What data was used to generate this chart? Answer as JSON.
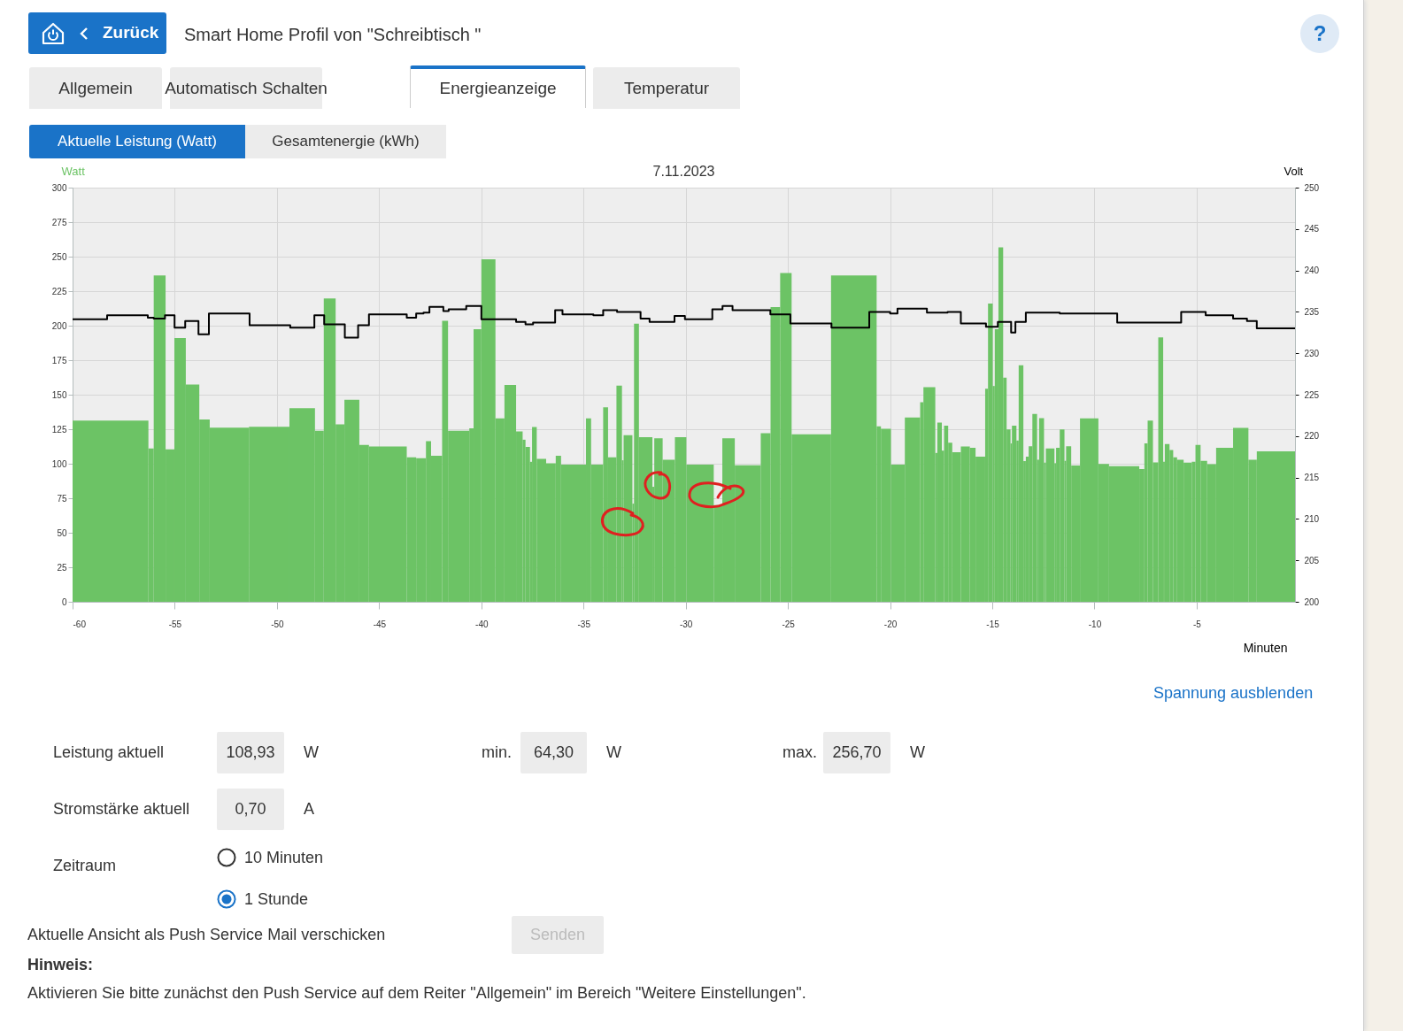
{
  "chart_data": {
    "type": "histogram",
    "title": "7.11.2023",
    "xlabel": "Minuten",
    "ylabel": "Watt",
    "y2label": "Volt",
    "xlim": [
      -60,
      -0.19
    ],
    "xticks": [
      -60,
      -55,
      -50,
      -45,
      -40,
      -35,
      -30,
      -25,
      -20,
      -15,
      -10,
      -5
    ],
    "ylim": [
      0,
      300
    ],
    "yticks": [
      0,
      25,
      50,
      75,
      100,
      125,
      150,
      175,
      200,
      225,
      250,
      275,
      300
    ],
    "y2lim": [
      200,
      250
    ],
    "y2ticks": [
      200,
      205,
      210,
      215,
      220,
      225,
      230,
      235,
      240,
      245,
      250
    ],
    "grid": true,
    "series": [
      {
        "type": "histogram",
        "color": "#6cc365",
        "bins": [
          -60,
          -56.29,
          -56.03,
          -55.45,
          -55.02,
          -54.46,
          -53.8,
          -53.29,
          -51.37,
          -49.39,
          -48.14,
          -47.71,
          -47.13,
          -46.7,
          -45.97,
          -45.5,
          -43.65,
          -43.19,
          -42.71,
          -42.46,
          -41.92,
          -41.63,
          -40.59,
          -40.38,
          -40,
          -39.31,
          -38.87,
          -38.3,
          -37.98,
          -37.84,
          -37.62,
          -37.52,
          -37.29,
          -36.83,
          -36.36,
          -36.1,
          -34.88,
          -34.63,
          -34.04,
          -33.8,
          -33.39,
          -33.12,
          -33.04,
          -32.61,
          -32.53,
          -32.29,
          -31.63,
          -31.54,
          -31.13,
          -30.53,
          -29.97,
          -28.63,
          -28.21,
          -27.6,
          -26.33,
          -25.85,
          -25.38,
          -24.82,
          -22.89,
          -20.66,
          -20.45,
          -19.96,
          -19.28,
          -18.53,
          -18.37,
          -17.79,
          -17.69,
          -17.47,
          -17.36,
          -17.16,
          -16.96,
          -16.54,
          -16.1,
          -15.82,
          -15.35,
          -15.21,
          -14.98,
          -14.88,
          -14.7,
          -14.47,
          -14.3,
          -14.11,
          -14.04,
          -13.82,
          -13.71,
          -13.48,
          -13.36,
          -13.22,
          -13.04,
          -12.81,
          -12.71,
          -12.47,
          -12.38,
          -11.96,
          -11.88,
          -11.7,
          -11.47,
          -11.39,
          -11.14,
          -10.71,
          -9.81,
          -9.29,
          -7.81,
          -7.56,
          -7.4,
          -7.14,
          -6.88,
          -6.64,
          -6.56,
          -6.33,
          -6.15,
          -5.96,
          -5.64,
          -5.24,
          -5.06,
          -4.81,
          -4.49,
          -4.05,
          -3.22,
          -2.47,
          -2.06,
          -0.19
        ],
        "values": [
          131.3,
          111,
          236.4,
          110.4,
          191,
          157.4,
          132,
          126.2,
          126.8,
          140.3,
          123.9,
          219.7,
          128.5,
          146.3,
          113.6,
          112.5,
          104.6,
          104,
          116.4,
          105.7,
          203.5,
          123.9,
          125.6,
          197.5,
          248.1,
          132.8,
          157,
          123.4,
          117.4,
          112.1,
          101.4,
          126.6,
          103.6,
          100.4,
          105.7,
          99.3,
          132.8,
          99.3,
          140.9,
          104.6,
          156.5,
          102.5,
          120.6,
          71.1,
          201.4,
          119.2,
          83.3,
          118.5,
          102.9,
          119.2,
          99.3,
          70,
          118.5,
          98.9,
          122.1,
          213.5,
          238.1,
          121.3,
          236.4,
          127.1,
          125.3,
          99.3,
          133.5,
          144.6,
          155.5,
          107.8,
          129.8,
          109.5,
          127.5,
          115.3,
          108.3,
          112.5,
          111.5,
          105.1,
          154.4,
          216.1,
          156.3,
          197.5,
          256.7,
          162.3,
          124.9,
          114.7,
          127.5,
          116.8,
          171.3,
          101.9,
          105.1,
          112.7,
          136,
          102.9,
          133,
          100.8,
          111,
          100.4,
          111.5,
          124.9,
          102.1,
          112.7,
          98.7,
          132.8,
          99.9,
          98.2,
          96.1,
          114.7,
          131.3,
          101,
          191.5,
          101.4,
          114.2,
          110,
          104.6,
          102.9,
          100.8,
          101.4,
          113.6,
          102.1,
          99.7,
          111.5,
          126,
          102.9,
          108.9
        ]
      },
      {
        "type": "step",
        "axis": "y2",
        "color": "#000000",
        "x": [
          -60,
          -58.31,
          -56.32,
          -56.03,
          -55.48,
          -55.01,
          -54.49,
          -53.84,
          -53.33,
          -51.34,
          -49.35,
          -48.17,
          -47.69,
          -46.68,
          -46.03,
          -45.5,
          -43.65,
          -43.19,
          -42.83,
          -42.54,
          -41.86,
          -41.6,
          -40.74,
          -40,
          -38.3,
          -37.84,
          -37.47,
          -36.39,
          -36.03,
          -34.52,
          -34.04,
          -33.36,
          -32.21,
          -31.77,
          -30.55,
          -30.04,
          -28.7,
          -28.2,
          -27.71,
          -25.86,
          -24.88,
          -22.87,
          -21.02,
          -20,
          -19.64,
          -18.2,
          -17.19,
          -16.54,
          -15.31,
          -14.73,
          -14.08,
          -13.87,
          -13.36,
          -11.7,
          -8.89,
          -5.76,
          -4.56,
          -3.22,
          -2.54,
          -2.06,
          -0.19
        ],
        "values": [
          234.1,
          234.6,
          234.3,
          234.2,
          234.6,
          233.1,
          233.9,
          232.3,
          234.8,
          233.4,
          233.1,
          234.6,
          233.5,
          231.9,
          233.4,
          234.7,
          234.3,
          234.8,
          234.9,
          235.6,
          235.1,
          235.3,
          235.7,
          234.1,
          233.8,
          233.5,
          233.7,
          235.2,
          234.7,
          234.6,
          235.2,
          235.0,
          234.2,
          233.8,
          234.5,
          234.1,
          235.3,
          235.7,
          235.2,
          234.7,
          233.6,
          233.1,
          235.0,
          234.8,
          235.4,
          234.9,
          235.0,
          233.6,
          233.2,
          233.8,
          232.5,
          233.8,
          234.9,
          234.8,
          233.7,
          235.0,
          234.6,
          234.2,
          233.9,
          233.0,
          233.0
        ]
      }
    ],
    "annotations": [
      "Zurück",
      "Smart Home Profil von \"Schreibtisch \"",
      "?",
      "Allgemein",
      "Automatisch Schalten",
      "Energieanzeige",
      "Temperatur",
      "Aktuelle Leistung (Watt)",
      "Gesamtenergie (kWh)",
      "Spannung ausblenden",
      "Leistung aktuell",
      "108,93",
      "W",
      "min.",
      "64,30",
      "W",
      "max.",
      "256,70",
      "W",
      "Stromstärke aktuell",
      "0,70",
      "A",
      "Zeitraum",
      "10 Minuten",
      "1 Stunde",
      "Aktuelle Ansicht als Push Service Mail verschicken",
      "Senden",
      "Hinweis:",
      "Aktivieren Sie bitte zunächst den Push Service auf dem Reiter \"Allgemein\" im Bereich \"Weitere Einstellungen\"."
    ]
  }
}
